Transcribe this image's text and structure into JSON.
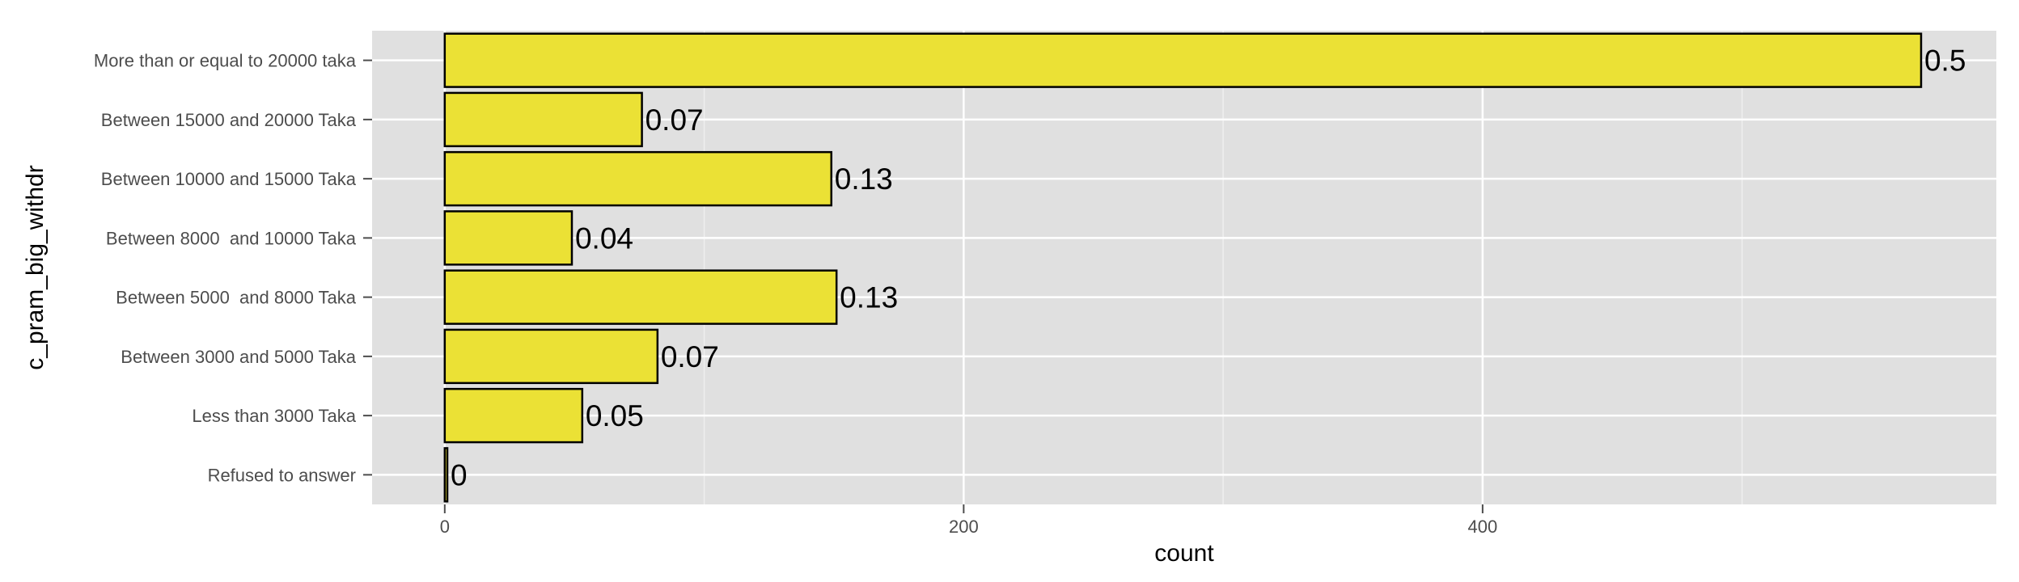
{
  "chart_data": {
    "type": "bar",
    "orientation": "horizontal",
    "title": "",
    "xlabel": "count",
    "ylabel": "c_pram_big_withdr",
    "xlim": [
      -28,
      598
    ],
    "x_ticks": [
      0,
      200,
      400
    ],
    "categories": [
      "More than or equal to 20000 taka",
      "Between 15000 and 20000 Taka",
      "Between 10000 and 15000 Taka",
      "Between 8000  and 10000 Taka",
      "Between 5000  and 8000 Taka",
      "Between 3000 and 5000 Taka",
      "Less than 3000 Taka",
      "Refused to answer"
    ],
    "values": [
      569,
      76,
      149,
      49,
      151,
      82,
      53,
      1
    ],
    "labels": [
      "0.5",
      "0.07",
      "0.13",
      "0.04",
      "0.13",
      "0.07",
      "0.05",
      "0"
    ],
    "grid": true,
    "legend": "none",
    "colors": {
      "bar_fill": "#ebe135",
      "bar_outline": "#000000",
      "panel_background": "#e0e0e0",
      "grid_major": "#ffffff",
      "grid_minor": "#efefef"
    }
  }
}
